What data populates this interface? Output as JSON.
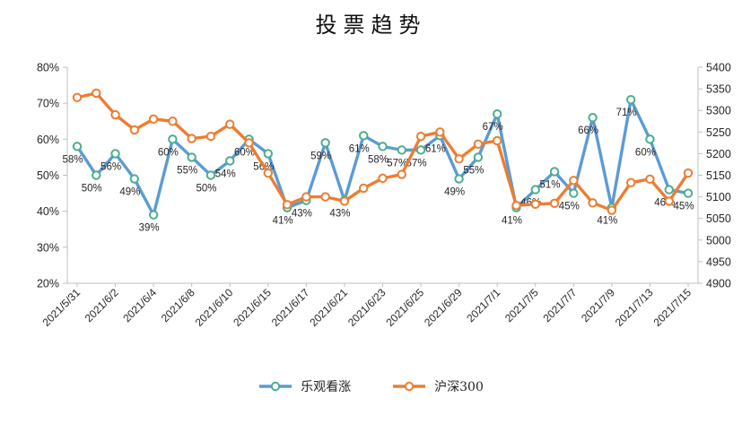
{
  "chart_data": {
    "type": "line",
    "title": "投票趋势",
    "legend_position": "bottom",
    "grid": false,
    "point_count": 33,
    "x_label_interval": 2,
    "x_tick_labels": [
      "2021/5/31",
      "2021/6/2",
      "2021/6/4",
      "2021/6/8",
      "2021/6/10",
      "2021/6/15",
      "2021/6/17",
      "2021/6/21",
      "2021/6/23",
      "2021/6/25",
      "2021/6/29",
      "2021/7/1",
      "2021/7/5",
      "2021/7/7",
      "2021/7/9",
      "2021/7/13",
      "2021/7/15"
    ],
    "left_axis": {
      "min": 20,
      "max": 80,
      "step": 10,
      "unit": "%",
      "ticks": [
        "80%",
        "70%",
        "60%",
        "50%",
        "40%",
        "30%",
        "20%"
      ]
    },
    "right_axis": {
      "min": 4900,
      "max": 5400,
      "step": 50,
      "ticks": [
        "5400",
        "5350",
        "5300",
        "5250",
        "5200",
        "5150",
        "5100",
        "5050",
        "5000",
        "4950",
        "4900"
      ]
    },
    "series": [
      {
        "name": "乐观看涨",
        "axis": "left",
        "color": "#5B9BD5",
        "marker_ring_color": "#4BAE8F",
        "marker": "circle",
        "values": [
          58,
          50,
          56,
          49,
          39,
          60,
          55,
          50,
          54,
          60,
          56,
          41,
          43,
          59,
          43,
          61,
          58,
          57,
          57,
          61,
          49,
          55,
          67,
          41,
          46,
          51,
          45,
          66,
          41,
          71,
          60,
          46,
          45
        ],
        "data_labels": [
          "58%",
          "50%",
          "56%",
          "49%",
          "39%",
          "60%",
          "55%",
          "50%",
          "54%",
          "60%",
          "56%",
          "41%",
          "43%",
          "59%",
          "43%",
          "61%",
          "58%",
          "57%",
          "57%",
          "61%",
          "49%",
          "55%",
          "67%",
          "41%",
          "46%",
          "51%",
          "45%",
          "66%",
          "41%",
          "71%",
          "60%",
          "46%",
          "45%"
        ]
      },
      {
        "name": "沪深300",
        "axis": "right",
        "color": "#ED7D31",
        "marker_ring_color": "#ED7D31",
        "marker": "circle",
        "values": [
          5330,
          5340,
          5290,
          5255,
          5280,
          5275,
          5235,
          5240,
          5268,
          5225,
          5155,
          5082,
          5100,
          5100,
          5090,
          5120,
          5143,
          5152,
          5240,
          5250,
          5188,
          5222,
          5230,
          5080,
          5083,
          5085,
          5138,
          5086,
          5069,
          5133,
          5141,
          5090,
          5155
        ]
      }
    ],
    "colors": {
      "axis_line": "#BFBFBF",
      "axis_text": "#262626",
      "data_label_text": "#262626",
      "background": "#FFFFFF"
    }
  }
}
